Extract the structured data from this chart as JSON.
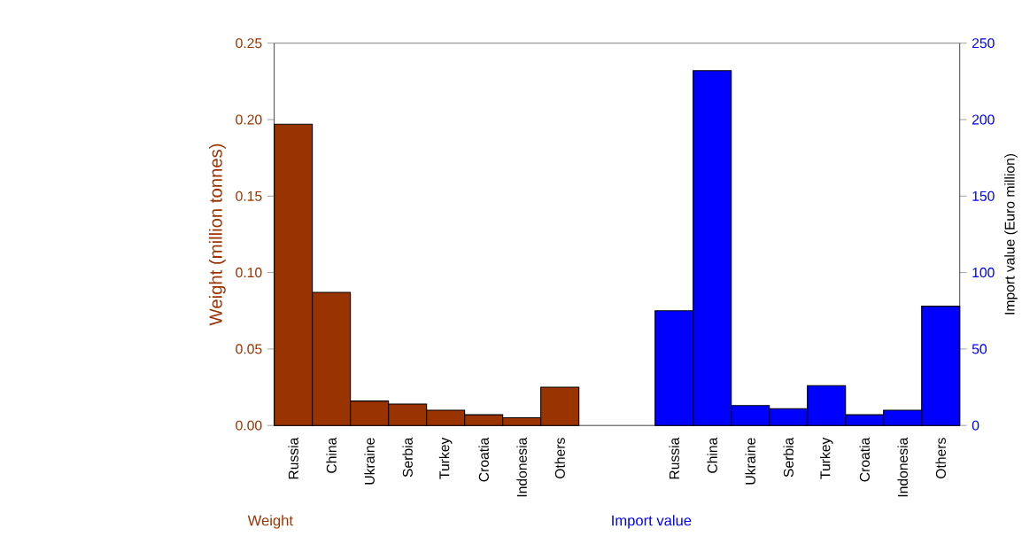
{
  "chart_data": {
    "type": "bar",
    "categories": [
      "Russia",
      "China",
      "Ukraine",
      "Serbia",
      "Turkey",
      "Croatia",
      "Indonesia",
      "Others",
      null,
      null,
      "Russia",
      "China",
      "Ukraine",
      "Serbia",
      "Turkey",
      "Croatia",
      "Indonesia",
      "Others"
    ],
    "series": [
      {
        "name": "Weight",
        "color": "#993300",
        "values": [
          0.197,
          0.087,
          0.016,
          0.014,
          0.01,
          0.007,
          0.005,
          0.025,
          null,
          null,
          null,
          null,
          null,
          null,
          null,
          null,
          null,
          null
        ]
      },
      {
        "name": "Import value",
        "color": "#0000ff",
        "axis": "y2",
        "values": [
          null,
          null,
          null,
          null,
          null,
          null,
          null,
          null,
          null,
          null,
          75,
          232,
          13,
          11,
          26,
          7,
          10,
          78
        ]
      }
    ],
    "ylabel": "Weight (million tonnes)",
    "y2label": "Import value (Euro million)",
    "ylim": [
      0,
      0.25
    ],
    "yticks": [
      {
        "value": 0,
        "label": "0.00"
      },
      {
        "value": 0.05,
        "label": "0.05"
      },
      {
        "value": 0.1,
        "label": "0.10"
      },
      {
        "value": 0.15,
        "label": "0.15"
      },
      {
        "value": 0.2,
        "label": "0.20"
      },
      {
        "value": 0.25,
        "label": "0.25"
      }
    ],
    "y2lim": [
      0,
      250
    ],
    "y2ticks": [
      0,
      50,
      100,
      150,
      200,
      250
    ]
  }
}
